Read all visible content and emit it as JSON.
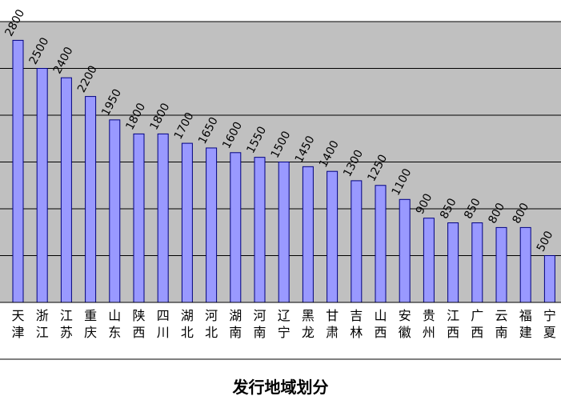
{
  "chart_data": {
    "type": "bar",
    "title": "",
    "xlabel": "发行地域划分",
    "ylabel": "",
    "ylim": [
      0,
      3500
    ],
    "grid": true,
    "visible_y_range": [
      0,
      3150
    ],
    "categories": [
      "天津",
      "浙江",
      "江苏",
      "重庆",
      "山东",
      "陕西",
      "四川",
      "湖北",
      "河北",
      "湖南",
      "河南",
      "辽宁",
      "黑龙",
      "甘肃",
      "吉林",
      "山西",
      "安徽",
      "贵州",
      "江西",
      "广西",
      "云南",
      "福建",
      "宁夏"
    ],
    "values": [
      2800,
      2500,
      2400,
      2200,
      1950,
      1800,
      1800,
      1700,
      1650,
      1600,
      1550,
      1500,
      1450,
      1400,
      1300,
      1250,
      1100,
      900,
      850,
      850,
      800,
      800,
      500
    ],
    "data_labels": [
      "2800",
      "2500",
      "2400",
      "2200",
      "1950",
      "1800",
      "1800",
      "1700",
      "1650",
      "1600",
      "1550",
      "1500",
      "1450",
      "1400",
      "1300",
      "1250",
      "1100",
      "900",
      "850",
      "850",
      "800",
      "800",
      "500"
    ],
    "colors": {
      "plot_background": "#c0c0c0",
      "bar_fill": "#9999ff",
      "bar_stroke": "#000080",
      "grid": "#000000"
    }
  }
}
